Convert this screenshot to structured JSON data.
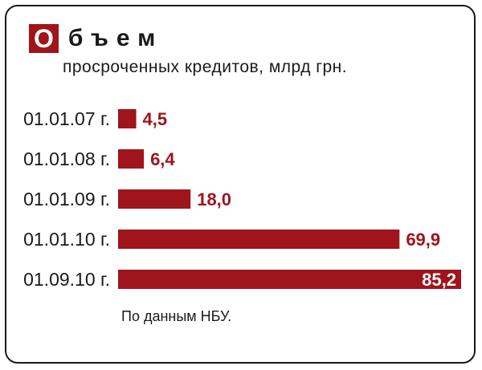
{
  "title": {
    "initial": "О",
    "rest": "бъем"
  },
  "subtitle": "просроченных кредитов, млрд грн.",
  "footnote": "По данным НБУ.",
  "colors": {
    "bar": "#a0141b",
    "value_label": "#a0141b",
    "value_label_inside": "#ffffff",
    "text": "#1a1a1a"
  },
  "chart_data": {
    "type": "bar",
    "orientation": "horizontal",
    "categories": [
      "01.01.07 г.",
      "01.01.08 г.",
      "01.01.09 г.",
      "01.01.10 г.",
      "01.09.10 г."
    ],
    "values": [
      4.5,
      6.4,
      18.0,
      69.9,
      85.2
    ],
    "value_labels": [
      "4,5",
      "6,4",
      "18,0",
      "69,9",
      "85,2"
    ],
    "title": "Объем",
    "subtitle": "просроченных кредитов, млрд грн.",
    "xlabel": "",
    "ylabel": "",
    "xlim": [
      0,
      85.2
    ],
    "grid": false,
    "legend": "none"
  }
}
